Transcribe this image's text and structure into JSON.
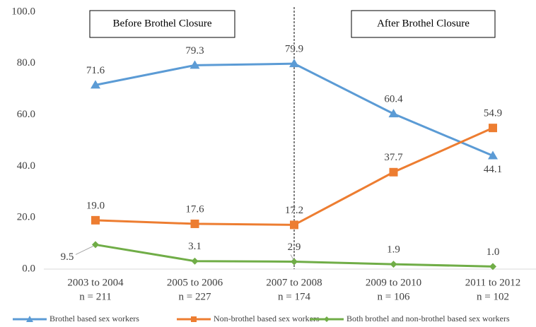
{
  "chart_data": {
    "type": "line",
    "categories": [
      "2003 to 2004",
      "2005 to 2006",
      "2007 to 2008",
      "2009 to 2010",
      "2011 to 2012"
    ],
    "category_sublabels": [
      "n = 211",
      "n = 227",
      "n = 174",
      "n = 106",
      "n = 102"
    ],
    "annotations": [
      "Before Brothel Closure",
      "After Brothel Closure"
    ],
    "ylim": [
      0,
      100
    ],
    "yticks": [
      {
        "value": 0,
        "label": "0.0"
      },
      {
        "value": 20,
        "label": "20.0"
      },
      {
        "value": 40,
        "label": "40.0"
      },
      {
        "value": 60,
        "label": "60.0"
      },
      {
        "value": 80,
        "label": "80.0"
      },
      {
        "value": 100,
        "label": "100.0"
      }
    ],
    "grid": false,
    "legend": "bottom",
    "series": [
      {
        "name": "Brothel based sex workers",
        "color": "#5b9bd5",
        "marker": "triangle",
        "values": [
          71.6,
          79.3,
          79.9,
          60.4,
          44.1
        ],
        "value_labels": [
          "71.6",
          "79.3",
          "79.9",
          "60.4",
          "44.1"
        ]
      },
      {
        "name": "Non-brothel based sex workers",
        "color": "#ed7d31",
        "marker": "square",
        "values": [
          19.0,
          17.6,
          17.2,
          37.7,
          54.9
        ],
        "value_labels": [
          "19.0",
          "17.6",
          "17.2",
          "37.7",
          "54.9"
        ]
      },
      {
        "name": "Both brothel and non-brothel based sex workers",
        "color": "#70ad47",
        "marker": "diamond",
        "values": [
          9.5,
          3.1,
          2.9,
          1.9,
          1.0
        ],
        "value_labels": [
          "9.5",
          "3.1",
          "2.9",
          "1.9",
          "1.0"
        ]
      }
    ]
  }
}
